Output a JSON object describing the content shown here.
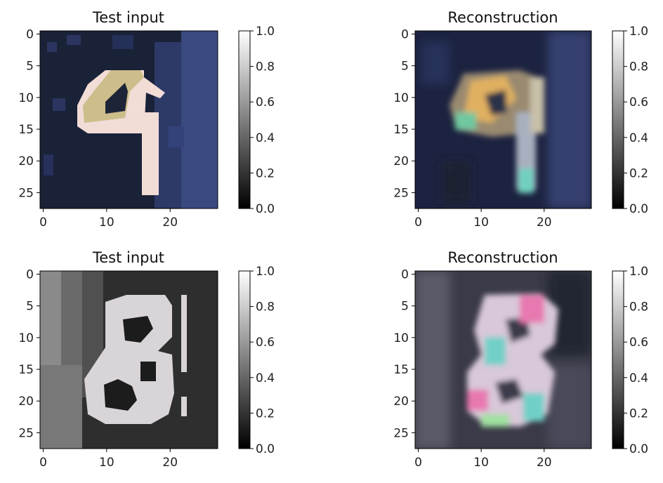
{
  "chart_data": [
    {
      "type": "heatmap",
      "title": "Test input",
      "digit": "9",
      "x_ticks": [
        0,
        10,
        20
      ],
      "y_ticks": [
        0,
        5,
        10,
        15,
        20,
        25
      ],
      "xlim": [
        -0.5,
        27.5
      ],
      "ylim": [
        27.5,
        -0.5
      ],
      "colorbar": {
        "ticks": [
          "0.0",
          "0.2",
          "0.4",
          "0.6",
          "0.8",
          "1.0"
        ],
        "range": [
          0.0,
          1.0
        ],
        "cmap": "gray"
      },
      "colors": {
        "background": "#1a2238",
        "side_band": "#3a4a80",
        "digit": "#f1dcd6",
        "digit_loop": "#cdbd8a"
      }
    },
    {
      "type": "heatmap",
      "title": "Reconstruction",
      "digit": "9",
      "x_ticks": [
        0,
        10,
        20
      ],
      "y_ticks": [
        0,
        5,
        10,
        15,
        20,
        25
      ],
      "xlim": [
        -0.5,
        27.5
      ],
      "ylim": [
        27.5,
        -0.5
      ],
      "colorbar": {
        "ticks": [
          "0.0",
          "0.2",
          "0.4",
          "0.6",
          "0.8",
          "1.0"
        ],
        "range": [
          0.0,
          1.0
        ],
        "cmap": "gray"
      },
      "colors": {
        "background": "#1c2340",
        "side_band": "#343f70",
        "digit": "#c8b8a8",
        "accent_a": "#e0b060",
        "accent_b": "#70d0c0"
      }
    },
    {
      "type": "heatmap",
      "title": "Test input",
      "digit": "8",
      "x_ticks": [
        0,
        10,
        20
      ],
      "y_ticks": [
        0,
        5,
        10,
        15,
        20,
        25
      ],
      "xlim": [
        -0.5,
        27.5
      ],
      "ylim": [
        27.5,
        -0.5
      ],
      "colorbar": {
        "ticks": [
          "0.0",
          "0.2",
          "0.4",
          "0.6",
          "0.8",
          "1.0"
        ],
        "range": [
          0.0,
          1.0
        ],
        "cmap": "gray"
      },
      "colors": {
        "background": "#2e2e2e",
        "left_band": "#8a8a8a",
        "digit": "#d8d4d8"
      }
    },
    {
      "type": "heatmap",
      "title": "Reconstruction",
      "digit": "8",
      "x_ticks": [
        0,
        10,
        20
      ],
      "y_ticks": [
        0,
        5,
        10,
        15,
        20,
        25
      ],
      "xlim": [
        -0.5,
        27.5
      ],
      "ylim": [
        27.5,
        -0.5
      ],
      "colorbar": {
        "ticks": [
          "0.0",
          "0.2",
          "0.4",
          "0.6",
          "0.8",
          "1.0"
        ],
        "range": [
          0.0,
          1.0
        ],
        "cmap": "gray"
      },
      "colors": {
        "background": "#3a3a48",
        "digit": "#d8c8d8",
        "accent_a": "#e878b0",
        "accent_b": "#70d0c8"
      }
    }
  ]
}
